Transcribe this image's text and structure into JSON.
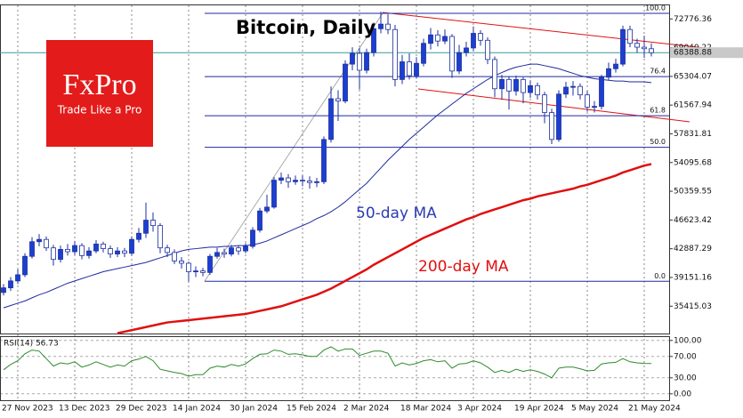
{
  "chart_data": [
    {
      "type": "candlestick",
      "title": "Bitcoin, Daily",
      "logo": {
        "brand": "FxPro",
        "tagline": "Trade Like a Pro"
      },
      "categories": [
        "27 Nov 2023",
        null,
        null,
        null,
        null,
        null,
        null,
        null,
        "13 Dec 2023",
        null,
        null,
        null,
        null,
        null,
        null,
        null,
        "29 Dec 2023",
        null,
        null,
        null,
        null,
        null,
        null,
        null,
        "14 Jan 2024",
        null,
        null,
        null,
        null,
        null,
        null,
        null,
        "30 Jan 2024",
        null,
        null,
        null,
        null,
        null,
        null,
        null,
        "15 Feb 2024",
        null,
        null,
        null,
        null,
        null,
        null,
        null,
        "2 Mar 2024",
        null,
        null,
        null,
        null,
        null,
        null,
        null,
        "18 Mar 2024",
        null,
        null,
        null,
        null,
        null,
        null,
        null,
        "3 Apr 2024",
        null,
        null,
        null,
        null,
        null,
        null,
        null,
        "19 Apr 2024",
        null,
        null,
        null,
        null,
        null,
        null,
        null,
        "5 May 2024",
        null,
        null,
        null,
        null,
        null,
        null,
        null,
        "21 May 2024",
        null,
        null,
        null
      ],
      "open": [
        37200,
        37800,
        38700,
        39500,
        41900,
        43800,
        44100,
        43000,
        41500,
        42800,
        42500,
        43300,
        42000,
        42600,
        43500,
        42900,
        42200,
        42600,
        42300,
        44100,
        44900,
        46600,
        45900,
        43000,
        42400,
        41300,
        41000,
        39900,
        40000,
        39800,
        41900,
        42400,
        42200,
        43000,
        42600,
        43200,
        45300,
        47800,
        48300,
        51800,
        52100,
        51600,
        51800,
        51700,
        51500,
        51600,
        57100,
        62400,
        62100,
        66900,
        68300,
        66100,
        68400,
        71500,
        72100,
        71400,
        64900,
        67200,
        65400,
        67000,
        69600,
        70700,
        69900,
        70500,
        66000,
        68400,
        69000,
        70900,
        70000,
        67500,
        63700,
        64900,
        63400,
        64900,
        63200,
        64100,
        62900,
        60600,
        57100,
        63000,
        63900,
        64000,
        62900,
        61300,
        61400,
        65200,
        66300,
        66900,
        71400,
        69600,
        69100,
        68900
      ],
      "high": [
        38300,
        39200,
        40200,
        42300,
        44400,
        44800,
        44500,
        43400,
        43300,
        43500,
        43900,
        43600,
        43100,
        44000,
        43800,
        43300,
        43100,
        43000,
        44500,
        45600,
        48900,
        47600,
        46200,
        43400,
        42800,
        41800,
        41200,
        40600,
        40400,
        42200,
        43000,
        42900,
        43400,
        43300,
        43600,
        45700,
        48200,
        49900,
        52200,
        52800,
        52600,
        52400,
        52400,
        52300,
        52100,
        57500,
        64000,
        63500,
        67400,
        69100,
        69000,
        68900,
        72300,
        73700,
        73400,
        72000,
        68100,
        68300,
        67800,
        70200,
        71600,
        71300,
        71400,
        70800,
        69400,
        69800,
        71800,
        71300,
        70400,
        67900,
        65500,
        65300,
        65400,
        65200,
        64800,
        64500,
        63300,
        61100,
        63500,
        64600,
        64700,
        64400,
        63400,
        62100,
        65500,
        67100,
        67600,
        71900,
        71900,
        70200,
        70600,
        69600
      ],
      "low": [
        36800,
        37400,
        38300,
        39200,
        41600,
        43200,
        42600,
        40700,
        41100,
        42000,
        42100,
        41500,
        41600,
        42300,
        42400,
        41700,
        41800,
        41800,
        42000,
        43700,
        44300,
        45100,
        42300,
        41800,
        40900,
        40300,
        38600,
        39200,
        39300,
        39500,
        41600,
        41700,
        41900,
        42100,
        42300,
        42900,
        45000,
        47500,
        48100,
        51300,
        50800,
        51200,
        51000,
        50700,
        50900,
        51300,
        56700,
        59500,
        61800,
        66100,
        63600,
        65700,
        67900,
        70900,
        70800,
        64000,
        64300,
        64900,
        65000,
        66600,
        68800,
        69200,
        69500,
        65100,
        65600,
        67900,
        68600,
        69300,
        66900,
        62600,
        62300,
        61000,
        62800,
        61800,
        62500,
        62300,
        59200,
        56500,
        56800,
        62500,
        62800,
        62300,
        60700,
        60600,
        61000,
        64800,
        65800,
        66600,
        69100,
        68400,
        67700,
        67900
      ],
      "close": [
        37800,
        38700,
        39500,
        41900,
        43800,
        44100,
        43000,
        41500,
        42800,
        42500,
        43300,
        42000,
        42600,
        43500,
        42900,
        42200,
        42600,
        42300,
        44100,
        44900,
        46600,
        45900,
        43000,
        42400,
        41300,
        41000,
        39900,
        40000,
        39800,
        41900,
        42400,
        42200,
        43000,
        42600,
        43200,
        45300,
        47800,
        48300,
        51800,
        52100,
        51600,
        51800,
        51700,
        51500,
        51600,
        57100,
        62400,
        62100,
        66900,
        68300,
        66100,
        68400,
        71500,
        72100,
        71400,
        64900,
        67200,
        65400,
        67000,
        69600,
        70700,
        69900,
        70500,
        66000,
        68400,
        69000,
        70900,
        70000,
        67500,
        63700,
        64900,
        63400,
        64900,
        63200,
        64100,
        62900,
        60600,
        57100,
        63000,
        63900,
        64000,
        62900,
        61300,
        61400,
        65200,
        66300,
        66900,
        71400,
        69600,
        69100,
        68900,
        68389
      ],
      "up_color": "#1c3fd1",
      "down_color": "#ffffff",
      "candle_outline": "#1c2f9e",
      "series": [
        {
          "name": "50-day MA",
          "color": "#1f2a9e",
          "values": [
            35200,
            35500,
            35800,
            36100,
            36500,
            36900,
            37200,
            37600,
            38000,
            38400,
            38700,
            39000,
            39300,
            39600,
            39900,
            40100,
            40300,
            40500,
            40700,
            40900,
            41100,
            41400,
            41700,
            42000,
            42300,
            42600,
            42800,
            42900,
            43000,
            43100,
            43100,
            43200,
            43200,
            43300,
            43300,
            43400,
            43600,
            43900,
            44300,
            44700,
            45100,
            45500,
            45900,
            46300,
            46800,
            47200,
            47700,
            48300,
            49000,
            49800,
            50600,
            51400,
            52400,
            53400,
            54400,
            55300,
            56200,
            57100,
            57900,
            58700,
            59500,
            60300,
            61000,
            61700,
            62400,
            63100,
            63700,
            64300,
            64900,
            65400,
            65800,
            66200,
            66500,
            66700,
            66900,
            66900,
            66700,
            66500,
            66300,
            66000,
            65700,
            65400,
            65200,
            65000,
            64900,
            64800,
            64700,
            64700,
            64600,
            64600,
            64600,
            64500
          ]
        },
        {
          "name": "200-day MA",
          "color": "#e01010",
          "values": [
            null,
            null,
            null,
            null,
            null,
            null,
            null,
            null,
            null,
            null,
            null,
            null,
            null,
            null,
            null,
            null,
            31900,
            32100,
            32300,
            32500,
            32700,
            32900,
            33100,
            33300,
            33400,
            33500,
            33600,
            33700,
            33800,
            33900,
            34000,
            34100,
            34200,
            34300,
            34400,
            34600,
            34800,
            35000,
            35200,
            35400,
            35700,
            36000,
            36300,
            36600,
            36900,
            37300,
            37700,
            38200,
            38700,
            39200,
            39700,
            40200,
            40800,
            41300,
            41800,
            42300,
            42800,
            43300,
            43800,
            44300,
            44700,
            45100,
            45500,
            45900,
            46300,
            46700,
            47000,
            47400,
            47700,
            48000,
            48300,
            48600,
            48900,
            49200,
            49400,
            49700,
            49900,
            50100,
            50300,
            50500,
            50700,
            51000,
            51200,
            51500,
            51800,
            52100,
            52400,
            52800,
            53100,
            53400,
            53700,
            53900
          ]
        }
      ],
      "last_price": 68388.88,
      "last_price_color": "#3a9a9a",
      "fib_levels": [
        {
          "label": "100.0",
          "price": 73500
        },
        {
          "label": "76.4",
          "price": 65275
        },
        {
          "label": "61.8",
          "price": 60187
        },
        {
          "label": "50.0",
          "price": 56075
        },
        {
          "label": "0.0",
          "price": 38650
        }
      ],
      "fib_color": "#1f2a9e",
      "ylim": [
        31860,
        74660
      ],
      "yticks": [
        35415.03,
        39151.16,
        42887.29,
        46623.42,
        50359.55,
        54095.68,
        57831.81,
        61567.94,
        65304.07,
        69040.22,
        72776.36
      ],
      "grid": true
    },
    {
      "type": "line",
      "title": "RSI(14) 56.73",
      "series": [
        {
          "name": "RSI(14)",
          "color": "#2e8b2e",
          "values": [
            45,
            55,
            62,
            75,
            82,
            80,
            66,
            52,
            58,
            56,
            60,
            50,
            54,
            60,
            55,
            50,
            54,
            52,
            62,
            65,
            70,
            62,
            46,
            43,
            40,
            38,
            33,
            36,
            36,
            48,
            52,
            50,
            55,
            52,
            56,
            66,
            74,
            75,
            82,
            80,
            74,
            75,
            73,
            70,
            70,
            82,
            88,
            80,
            84,
            84,
            72,
            76,
            80,
            80,
            76,
            52,
            58,
            54,
            57,
            62,
            64,
            60,
            62,
            48,
            56,
            57,
            62,
            58,
            50,
            40,
            44,
            40,
            46,
            42,
            45,
            42,
            37,
            30,
            48,
            50,
            50,
            47,
            43,
            44,
            56,
            58,
            59,
            66,
            60,
            58,
            57,
            56.73
          ]
        }
      ],
      "ylim": [
        -12,
        108
      ],
      "yticks": [
        {
          "value": 0,
          "label": "0.00"
        },
        {
          "value": 30,
          "label": "30.00"
        },
        {
          "value": 70,
          "label": "70.00"
        },
        {
          "value": 100,
          "label": "100.00"
        }
      ],
      "grid": true
    }
  ]
}
